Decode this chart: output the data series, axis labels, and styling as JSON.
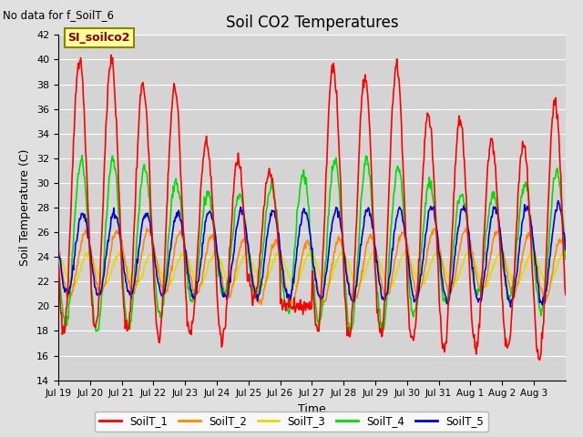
{
  "title": "Soil CO2 Temperatures",
  "xlabel": "Time",
  "ylabel": "Soil Temperature (C)",
  "ylim": [
    14,
    42
  ],
  "yticks": [
    14,
    16,
    18,
    20,
    22,
    24,
    26,
    28,
    30,
    32,
    34,
    36,
    38,
    40,
    42
  ],
  "note": "No data for f_SoilT_6",
  "station_label": "SI_soilco2",
  "x_tick_labels": [
    "Jul 19",
    "Jul 20",
    "Jul 21",
    "Jul 22",
    "Jul 23",
    "Jul 24",
    "Jul 25",
    "Jul 26",
    "Jul 27",
    "Jul 28",
    "Jul 29",
    "Jul 30",
    "Jul 31",
    "Aug 1",
    "Aug 2",
    "Aug 3"
  ],
  "series": {
    "SoilT_1": {
      "color": "#ff0000",
      "linewidth": 1.2
    },
    "SoilT_2": {
      "color": "#ff8800",
      "linewidth": 1.2
    },
    "SoilT_3": {
      "color": "#dddd00",
      "linewidth": 1.2
    },
    "SoilT_4": {
      "color": "#00dd00",
      "linewidth": 1.2
    },
    "SoilT_5": {
      "color": "#0000dd",
      "linewidth": 1.2
    }
  },
  "bg_color": "#e0e0e0",
  "plot_bg_color": "#d4d4d4",
  "grid_color": "#ffffff",
  "legend_bg": "#ffff99",
  "legend_border": "#888800",
  "figsize": [
    6.4,
    4.8
  ],
  "dpi": 100
}
